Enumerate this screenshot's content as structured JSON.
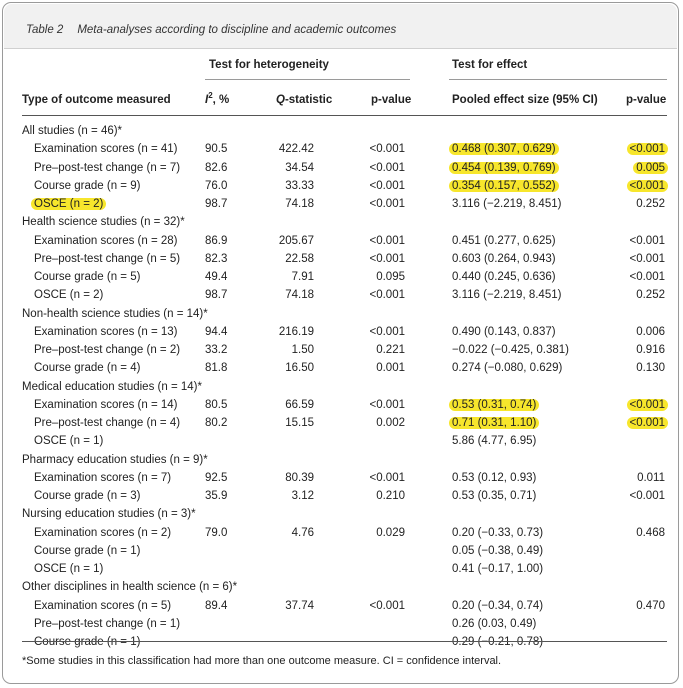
{
  "table": {
    "number": "Table 2",
    "title": "Meta-analyses according to discipline and academic outcomes",
    "group_headers": {
      "heterogeneity": "Test for heterogeneity",
      "effect": "Test for effect"
    },
    "col_headers": {
      "type": "Type of outcome measured",
      "i2_symbol": "I",
      "i2_sup": "2",
      "i2_unit": ", %",
      "q_symbol": "Q",
      "q_rest": "-statistic",
      "p": "p-value",
      "effect": "Pooled effect size (95% CI)",
      "pv": "p-value"
    },
    "highlight_color": "#f7e62c",
    "rows": [
      {
        "label": "All studies (n = 46)*",
        "group": true
      },
      {
        "label": "Examination scores (n = 41)",
        "i2": "90.5",
        "q": "422.42",
        "p": "<0.001",
        "effect": "0.468 (0.307, 0.629)",
        "pv": "<0.001",
        "hl_effect": true,
        "hl_pv": true
      },
      {
        "label": "Pre–post-test change (n = 7)",
        "i2": "82.6",
        "q": "34.54",
        "p": "<0.001",
        "effect": "0.454 (0.139, 0.769)",
        "pv": "0.005",
        "hl_effect": true,
        "hl_pv": true
      },
      {
        "label": "Course grade (n = 9)",
        "i2": "76.0",
        "q": "33.33",
        "p": "<0.001",
        "effect": "0.354 (0.157, 0.552)",
        "pv": "<0.001",
        "hl_effect": true,
        "hl_pv": true
      },
      {
        "label": "OSCE (n = 2)",
        "i2": "98.7",
        "q": "74.18",
        "p": "<0.001",
        "effect": "3.116 (−2.219, 8.451)",
        "pv": "0.252",
        "hl_label": true
      },
      {
        "label": "Health science studies (n = 32)*",
        "group": true
      },
      {
        "label": "Examination scores (n = 28)",
        "i2": "86.9",
        "q": "205.67",
        "p": "<0.001",
        "effect": "0.451 (0.277, 0.625)",
        "pv": "<0.001"
      },
      {
        "label": "Pre–post-test change (n = 5)",
        "i2": "82.3",
        "q": "22.58",
        "p": "<0.001",
        "effect": "0.603 (0.264, 0.943)",
        "pv": "<0.001"
      },
      {
        "label": "Course grade (n = 5)",
        "i2": "49.4",
        "q": "7.91",
        "p": "0.095",
        "effect": "0.440 (0.245, 0.636)",
        "pv": "<0.001"
      },
      {
        "label": "OSCE (n = 2)",
        "i2": "98.7",
        "q": "74.18",
        "p": "<0.001",
        "effect": "3.116 (−2.219, 8.451)",
        "pv": "0.252"
      },
      {
        "label": "Non-health science studies (n = 14)*",
        "group": true
      },
      {
        "label": "Examination scores (n = 13)",
        "i2": "94.4",
        "q": "216.19",
        "p": "<0.001",
        "effect": "0.490 (0.143, 0.837)",
        "pv": "0.006"
      },
      {
        "label": "Pre–post-test change (n = 2)",
        "i2": "33.2",
        "q": "1.50",
        "p": "0.221",
        "effect": "−0.022 (−0.425, 0.381)",
        "pv": "0.916"
      },
      {
        "label": "Course grade (n = 4)",
        "i2": "81.8",
        "q": "16.50",
        "p": "0.001",
        "effect": "0.274 (−0.080, 0.629)",
        "pv": "0.130"
      },
      {
        "label": "Medical education studies (n = 14)*",
        "group": true
      },
      {
        "label": "Examination scores (n = 14)",
        "i2": "80.5",
        "q": "66.59",
        "p": "<0.001",
        "effect": "0.53 (0.31, 0.74)",
        "pv": "<0.001",
        "hl_effect": true,
        "hl_pv": true
      },
      {
        "label": "Pre–post-test change (n = 4)",
        "i2": "80.2",
        "q": "15.15",
        "p": "0.002",
        "effect": "0.71 (0.31, 1.10)",
        "pv": "<0.001",
        "hl_effect": true,
        "hl_pv": true
      },
      {
        "label": "OSCE (n = 1)",
        "effect": "5.86 (4.77, 6.95)"
      },
      {
        "label": "Pharmacy education studies (n = 9)*",
        "group": true
      },
      {
        "label": "Examination scores (n = 7)",
        "i2": "92.5",
        "q": "80.39",
        "p": "<0.001",
        "effect": "0.53 (0.12, 0.93)",
        "pv": "0.011"
      },
      {
        "label": "Course grade (n = 3)",
        "i2": "35.9",
        "q": "3.12",
        "p": "0.210",
        "effect": "0.53 (0.35, 0.71)",
        "pv": "<0.001"
      },
      {
        "label": "Nursing education studies (n = 3)*",
        "group": true
      },
      {
        "label": "Examination scores (n = 2)",
        "i2": "79.0",
        "q": "4.76",
        "p": "0.029",
        "effect": "0.20 (−0.33, 0.73)",
        "pv": "0.468"
      },
      {
        "label": "Course grade (n = 1)",
        "effect": "0.05 (−0.38, 0.49)"
      },
      {
        "label": "OSCE (n = 1)",
        "effect": "0.41 (−0.17, 1.00)"
      },
      {
        "label": "Other disciplines in health science (n = 6)*",
        "group": true
      },
      {
        "label": "Examination scores (n = 5)",
        "i2": "89.4",
        "q": "37.74",
        "p": "<0.001",
        "effect": "0.20 (−0.34, 0.74)",
        "pv": "0.470"
      },
      {
        "label": "Pre–post-test change (n = 1)",
        "effect": "0.26 (0.03, 0.49)"
      },
      {
        "label": "Course grade (n = 1)",
        "effect": "0.29 (−0.21, 0.78)"
      }
    ],
    "footnote": "*Some studies in this classification had more than one outcome measure. CI = confidence interval."
  }
}
